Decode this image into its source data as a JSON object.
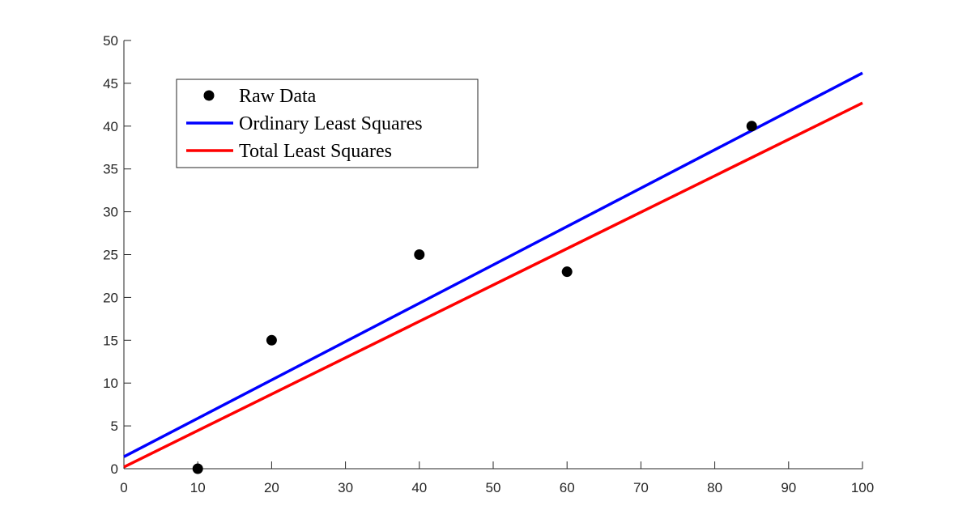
{
  "chart_data": {
    "type": "scatter",
    "title": "",
    "xlabel": "",
    "ylabel": "",
    "xlim": [
      0,
      100
    ],
    "ylim": [
      0,
      50
    ],
    "xticks": [
      0,
      10,
      20,
      30,
      40,
      50,
      60,
      70,
      80,
      90,
      100
    ],
    "yticks": [
      0,
      5,
      10,
      15,
      20,
      25,
      30,
      35,
      40,
      45,
      50
    ],
    "grid": false,
    "legend_position": "top-left",
    "series": [
      {
        "name": "Raw Data",
        "kind": "scatter",
        "color": "#000000",
        "points": [
          {
            "x": 10,
            "y": 0
          },
          {
            "x": 20,
            "y": 15
          },
          {
            "x": 40,
            "y": 25
          },
          {
            "x": 60,
            "y": 23
          },
          {
            "x": 85,
            "y": 40
          }
        ]
      },
      {
        "name": "Ordinary Least Squares",
        "kind": "line",
        "color": "#0000ff",
        "points": [
          {
            "x": 0,
            "y": 1.4
          },
          {
            "x": 100,
            "y": 46.2
          }
        ]
      },
      {
        "name": "Total Least Squares",
        "kind": "line",
        "color": "#ff0000",
        "points": [
          {
            "x": 0,
            "y": 0.2
          },
          {
            "x": 100,
            "y": 42.7
          }
        ]
      }
    ]
  }
}
